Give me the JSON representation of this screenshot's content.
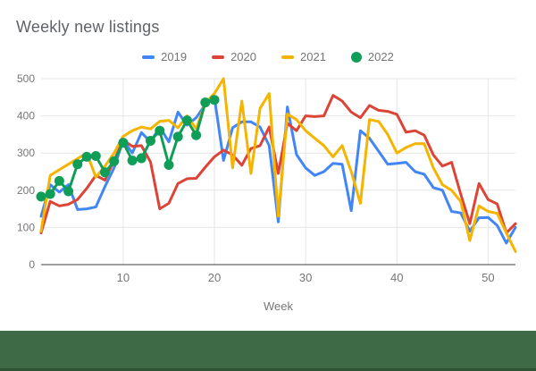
{
  "title": "Weekly new listings",
  "footer": {
    "color": "#3e6b45"
  },
  "chart_data": {
    "type": "line",
    "title": "Weekly new listings",
    "xlabel": "Week",
    "ylabel": "",
    "xlim": [
      1,
      53
    ],
    "ylim": [
      0,
      500
    ],
    "x_ticks": [
      10,
      20,
      30,
      40,
      50
    ],
    "y_ticks": [
      0,
      100,
      200,
      300,
      400,
      500
    ],
    "grid": true,
    "legend_position": "top",
    "axis_color": "#424242",
    "grid_color": "#e6e6e6",
    "x": [
      1,
      2,
      3,
      4,
      5,
      6,
      7,
      8,
      9,
      10,
      11,
      12,
      13,
      14,
      15,
      16,
      17,
      18,
      19,
      20,
      21,
      22,
      23,
      24,
      25,
      26,
      27,
      28,
      29,
      30,
      31,
      32,
      33,
      34,
      35,
      36,
      37,
      38,
      39,
      40,
      41,
      42,
      43,
      44,
      45,
      46,
      47,
      48,
      49,
      50,
      51,
      52,
      53
    ],
    "series": [
      {
        "name": "2019",
        "color": "#4285F4",
        "marker": "none",
        "values": [
          130,
          215,
          195,
          215,
          148,
          150,
          155,
          210,
          260,
          335,
          300,
          355,
          330,
          370,
          330,
          410,
          375,
          395,
          430,
          450,
          280,
          368,
          384,
          384,
          370,
          320,
          115,
          424,
          296,
          260,
          240,
          250,
          272,
          270,
          145,
          360,
          340,
          305,
          270,
          272,
          275,
          250,
          243,
          207,
          200,
          143,
          139,
          90,
          126,
          127,
          105,
          58,
          100
        ]
      },
      {
        "name": "2020",
        "color": "#DB4437",
        "marker": "none",
        "values": [
          85,
          170,
          158,
          162,
          175,
          205,
          240,
          227,
          280,
          335,
          318,
          320,
          276,
          150,
          165,
          218,
          231,
          232,
          262,
          290,
          308,
          295,
          267,
          312,
          320,
          370,
          245,
          380,
          360,
          400,
          398,
          400,
          455,
          440,
          410,
          395,
          428,
          415,
          412,
          404,
          356,
          360,
          348,
          295,
          265,
          275,
          190,
          110,
          218,
          175,
          163,
          85,
          110
        ]
      },
      {
        "name": "2021",
        "color": "#F4B400",
        "marker": "none",
        "values": [
          90,
          240,
          255,
          270,
          285,
          300,
          235,
          265,
          300,
          345,
          360,
          370,
          365,
          385,
          388,
          368,
          400,
          365,
          435,
          460,
          500,
          260,
          440,
          245,
          420,
          460,
          130,
          405,
          390,
          360,
          340,
          320,
          290,
          320,
          250,
          165,
          390,
          385,
          350,
          300,
          315,
          325,
          325,
          260,
          215,
          200,
          170,
          65,
          158,
          143,
          138,
          85,
          35
        ]
      },
      {
        "name": "2022",
        "color": "#0F9D58",
        "marker": "circle",
        "values": [
          183,
          190,
          225,
          197,
          270,
          290,
          292,
          248,
          278,
          328,
          280,
          286,
          333,
          360,
          268,
          344,
          388,
          348,
          436,
          443,
          null,
          null,
          null,
          null,
          null,
          null,
          null,
          null,
          null,
          null,
          null,
          null,
          null,
          null,
          null,
          null,
          null,
          null,
          null,
          null,
          null,
          null,
          null,
          null,
          null,
          null,
          null,
          null,
          null,
          null,
          null,
          null,
          null
        ]
      }
    ]
  }
}
